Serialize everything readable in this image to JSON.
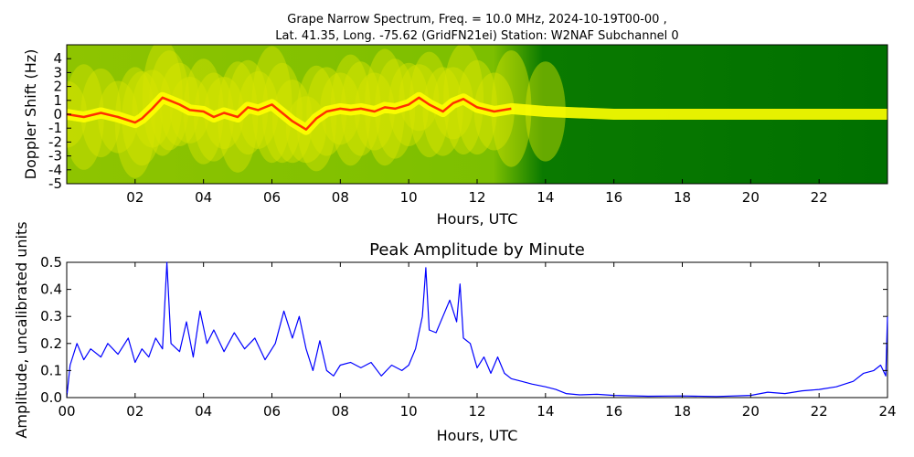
{
  "figure": {
    "title_line1": "Grape Narrow Spectrum, Freq. = 10.0 MHz, 2024-10-19T00-00 ,",
    "title_line2": "Lat.  41.35, Long. -75.62 (GridFN21ei) Station: W2NAF Subchannel 0"
  },
  "chart_data": [
    {
      "type": "heatmap",
      "title": "",
      "xlabel": "Hours, UTC",
      "ylabel": "Doppler Shift (Hz)",
      "xlim": [
        0,
        24
      ],
      "ylim": [
        -5,
        5
      ],
      "xtick_labels": [
        "02",
        "04",
        "06",
        "08",
        "10",
        "12",
        "14",
        "16",
        "18",
        "20",
        "22"
      ],
      "ytick_labels": [
        "4",
        "3",
        "2",
        "1",
        "0",
        "-1",
        "-2",
        "-3",
        "-4",
        "-5"
      ],
      "colors": {
        "low": "#006400",
        "mid": "#7cbf00",
        "high": "#ffff00",
        "peak": "#ff3000"
      },
      "doppler_trace": {
        "x": [
          0,
          0.5,
          1,
          1.5,
          2,
          2.2,
          2.5,
          2.8,
          3,
          3.3,
          3.6,
          4,
          4.3,
          4.6,
          5,
          5.3,
          5.6,
          6,
          6.3,
          6.6,
          7,
          7.3,
          7.6,
          8,
          8.3,
          8.6,
          9,
          9.3,
          9.6,
          10,
          10.3,
          10.6,
          11,
          11.3,
          11.6,
          12,
          12.5,
          13,
          14,
          16,
          18,
          20,
          22,
          24
        ],
        "y": [
          0,
          -0.2,
          0.1,
          -0.2,
          -0.6,
          -0.3,
          0.4,
          1.2,
          1.0,
          0.7,
          0.3,
          0.2,
          -0.2,
          0.1,
          -0.2,
          0.5,
          0.3,
          0.7,
          0.1,
          -0.5,
          -1.1,
          -0.3,
          0.2,
          0.4,
          0.3,
          0.4,
          0.2,
          0.5,
          0.4,
          0.7,
          1.2,
          0.7,
          0.2,
          0.8,
          1.1,
          0.5,
          0.2,
          0.4,
          0.2,
          0,
          0,
          0,
          0,
          0
        ]
      }
    },
    {
      "type": "line",
      "title": "Peak Amplitude by Minute",
      "xlabel": "Hours, UTC",
      "ylabel": "Amplitude, uncalibrated units",
      "xlim": [
        0,
        24
      ],
      "ylim": [
        0,
        0.5
      ],
      "xtick_labels": [
        "00",
        "02",
        "04",
        "06",
        "08",
        "10",
        "12",
        "14",
        "16",
        "18",
        "20",
        "22",
        "24"
      ],
      "ytick_labels": [
        "0.0",
        "0.1",
        "0.2",
        "0.3",
        "0.4",
        "0.5"
      ],
      "line_color": "#0000ff",
      "series": [
        {
          "x": [
            0,
            0.1,
            0.3,
            0.5,
            0.7,
            1.0,
            1.2,
            1.5,
            1.8,
            2.0,
            2.2,
            2.4,
            2.6,
            2.8,
            2.93,
            3.05,
            3.3,
            3.5,
            3.7,
            3.9,
            4.1,
            4.3,
            4.6,
            4.9,
            5.2,
            5.5,
            5.8,
            6.1,
            6.35,
            6.6,
            6.8,
            7.0,
            7.2,
            7.4,
            7.6,
            7.8,
            8.0,
            8.3,
            8.6,
            8.9,
            9.2,
            9.5,
            9.8,
            10.0,
            10.2,
            10.4,
            10.5,
            10.6,
            10.8,
            11.0,
            11.2,
            11.4,
            11.5,
            11.6,
            11.8,
            12.0,
            12.2,
            12.4,
            12.6,
            12.8,
            13.0,
            13.3,
            13.6,
            14.0,
            14.3,
            14.6,
            15.0,
            15.5,
            16.0,
            17.0,
            18.0,
            19.0,
            20.0,
            20.5,
            21.0,
            21.5,
            22.0,
            22.5,
            23.0,
            23.3,
            23.6,
            23.8,
            23.95,
            24.0
          ],
          "values": [
            0.0,
            0.12,
            0.2,
            0.14,
            0.18,
            0.15,
            0.2,
            0.16,
            0.22,
            0.13,
            0.18,
            0.15,
            0.22,
            0.18,
            0.5,
            0.2,
            0.17,
            0.28,
            0.15,
            0.32,
            0.2,
            0.25,
            0.17,
            0.24,
            0.18,
            0.22,
            0.14,
            0.2,
            0.32,
            0.22,
            0.3,
            0.18,
            0.1,
            0.21,
            0.1,
            0.08,
            0.12,
            0.13,
            0.11,
            0.13,
            0.08,
            0.12,
            0.1,
            0.12,
            0.18,
            0.3,
            0.48,
            0.25,
            0.24,
            0.3,
            0.36,
            0.28,
            0.42,
            0.22,
            0.2,
            0.11,
            0.15,
            0.09,
            0.15,
            0.09,
            0.07,
            0.06,
            0.05,
            0.04,
            0.03,
            0.015,
            0.01,
            0.012,
            0.008,
            0.005,
            0.006,
            0.004,
            0.008,
            0.02,
            0.015,
            0.025,
            0.03,
            0.04,
            0.06,
            0.09,
            0.1,
            0.12,
            0.08,
            0.3
          ]
        }
      ]
    }
  ]
}
